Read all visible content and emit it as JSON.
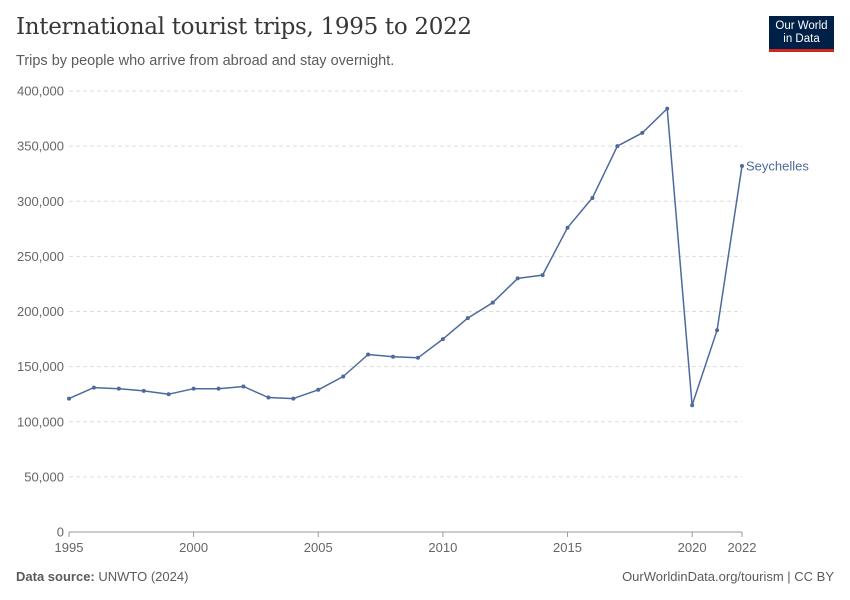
{
  "header": {
    "title": "International tourist trips, 1995 to 2022",
    "subtitle": "Trips by people who arrive from abroad and stay overnight."
  },
  "logo": {
    "line1": "Our World",
    "line2": "in Data"
  },
  "footer": {
    "source_label": "Data source:",
    "source_value": "UNWTO (2024)",
    "credit": "OurWorldinData.org/tourism | CC BY"
  },
  "colors": {
    "series": "#4c6a9c",
    "grid": "#dddddd",
    "axis": "#999999"
  },
  "chart_data": {
    "type": "line",
    "title": "International tourist trips, 1995 to 2022",
    "subtitle": "Trips by people who arrive from abroad and stay overnight.",
    "xlim": [
      1995,
      2022
    ],
    "ylim": [
      0,
      400000
    ],
    "x_ticks": [
      "1995",
      "2000",
      "2005",
      "2010",
      "2015",
      "2020",
      "2022"
    ],
    "y_ticks": [
      "0",
      "50,000",
      "100,000",
      "150,000",
      "200,000",
      "250,000",
      "300,000",
      "350,000",
      "400,000"
    ],
    "grid": true,
    "legend": "inline label at end of line",
    "series": [
      {
        "name": "Seychelles",
        "x": [
          1995,
          1996,
          1997,
          1998,
          1999,
          2000,
          2001,
          2002,
          2003,
          2004,
          2005,
          2006,
          2007,
          2008,
          2009,
          2010,
          2011,
          2012,
          2013,
          2014,
          2015,
          2016,
          2017,
          2018,
          2019,
          2020,
          2021,
          2022
        ],
        "values": [
          121000,
          131000,
          130000,
          128000,
          125000,
          130000,
          130000,
          132000,
          122000,
          121000,
          129000,
          141000,
          161000,
          159000,
          158000,
          175000,
          194000,
          208000,
          230000,
          233000,
          276000,
          303000,
          350000,
          362000,
          384000,
          115000,
          183000,
          332000
        ]
      }
    ]
  }
}
